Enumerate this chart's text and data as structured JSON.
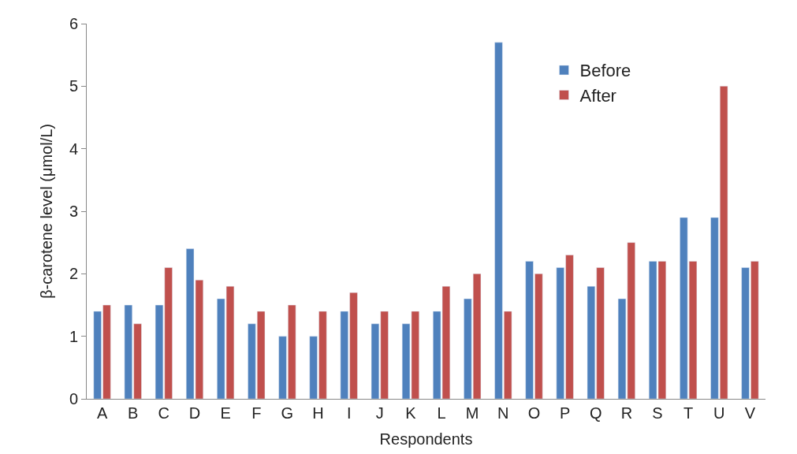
{
  "chart_data": {
    "type": "bar",
    "xlabel": "Respondents",
    "ylabel": "β-carotene level (μmol/L)",
    "categories": [
      "A",
      "B",
      "C",
      "D",
      "E",
      "F",
      "G",
      "H",
      "I",
      "J",
      "K",
      "L",
      "M",
      "N",
      "O",
      "P",
      "Q",
      "R",
      "S",
      "T",
      "U",
      "V"
    ],
    "series": [
      {
        "name": "Before",
        "color": "#4f81bd",
        "values": [
          1.4,
          1.5,
          1.5,
          2.4,
          1.6,
          1.2,
          1.0,
          1.0,
          1.4,
          1.2,
          1.2,
          1.4,
          1.6,
          5.7,
          2.2,
          2.1,
          1.8,
          1.6,
          2.2,
          2.9,
          2.9,
          2.1
        ]
      },
      {
        "name": "After",
        "color": "#c0504d",
        "values": [
          1.5,
          1.2,
          2.1,
          1.9,
          1.8,
          1.4,
          1.5,
          1.4,
          1.7,
          1.4,
          1.4,
          1.8,
          2.0,
          1.4,
          2.0,
          2.3,
          2.1,
          2.5,
          2.2,
          2.2,
          5.0,
          2.2
        ]
      }
    ],
    "ylim": [
      0,
      6
    ],
    "yticks": [
      0,
      1,
      2,
      3,
      4,
      5,
      6
    ],
    "legend": "top right"
  }
}
